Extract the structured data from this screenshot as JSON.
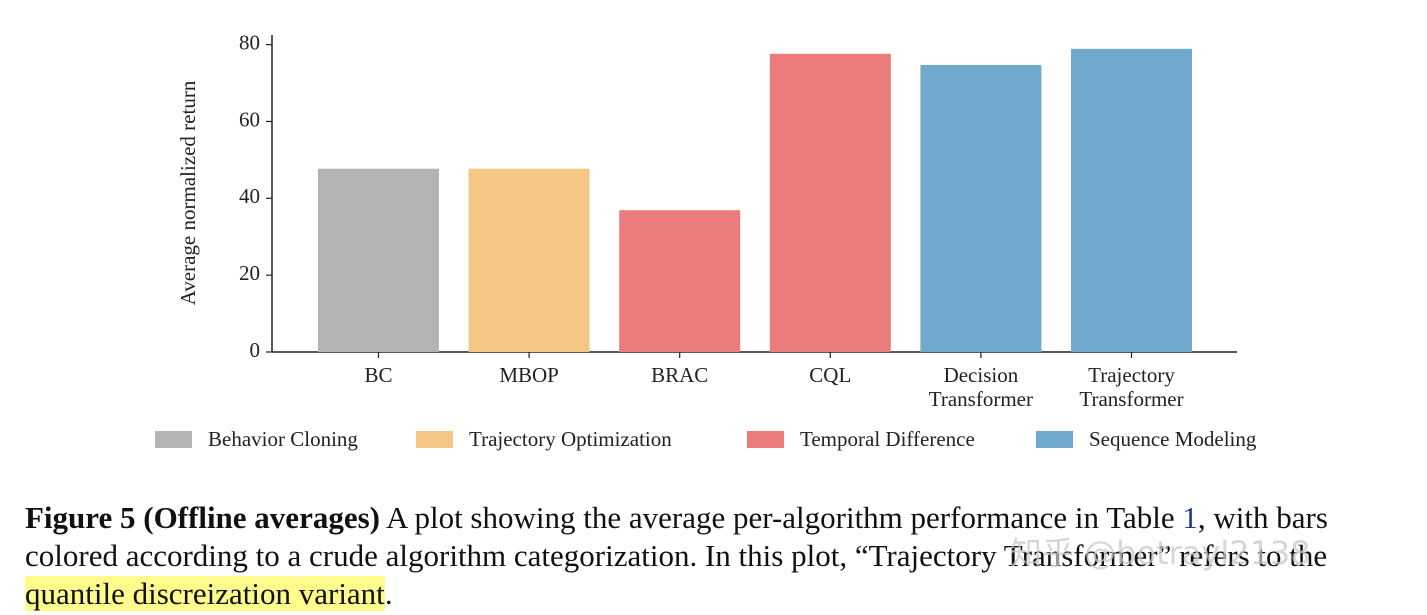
{
  "chart_data": {
    "type": "bar",
    "y_label": "Average normalized return",
    "categories": [
      "BC",
      "MBOP",
      "BRAC",
      "CQL",
      "Decision Transformer",
      "Trajectory Transformer"
    ],
    "series": [
      {
        "name": "Behavior Cloning",
        "color": "#b3b3b3",
        "values": [
          47.7,
          null,
          null,
          null,
          null,
          null
        ]
      },
      {
        "name": "Trajectory Optimization",
        "color": "#f5c784",
        "values": [
          null,
          47.7,
          null,
          null,
          null,
          null
        ]
      },
      {
        "name": "Temporal Difference",
        "color": "#ec7b7b",
        "values": [
          null,
          null,
          36.9,
          77.6,
          null,
          null
        ]
      },
      {
        "name": "Sequence Modeling",
        "color": "#70a9cc",
        "values": [
          null,
          null,
          null,
          null,
          74.7,
          78.9
        ]
      }
    ],
    "ylim": [
      0,
      82.5
    ],
    "yticks": [
      0,
      20,
      40,
      60,
      80
    ],
    "grid": false,
    "legend": "bottom"
  },
  "caption": {
    "label": "Figure 5 (Offline averages)",
    "text_1": "A plot showing the average per-algorithm performance in Table",
    "ref": "1",
    "text_2": ", with bars colored according to a crude algorithm categorization. In this plot, “Trajectory Transformer” refers to the",
    "highlight": "quantile discreization variant",
    "end": "."
  },
  "watermark": "知乎 @botrayl2138"
}
